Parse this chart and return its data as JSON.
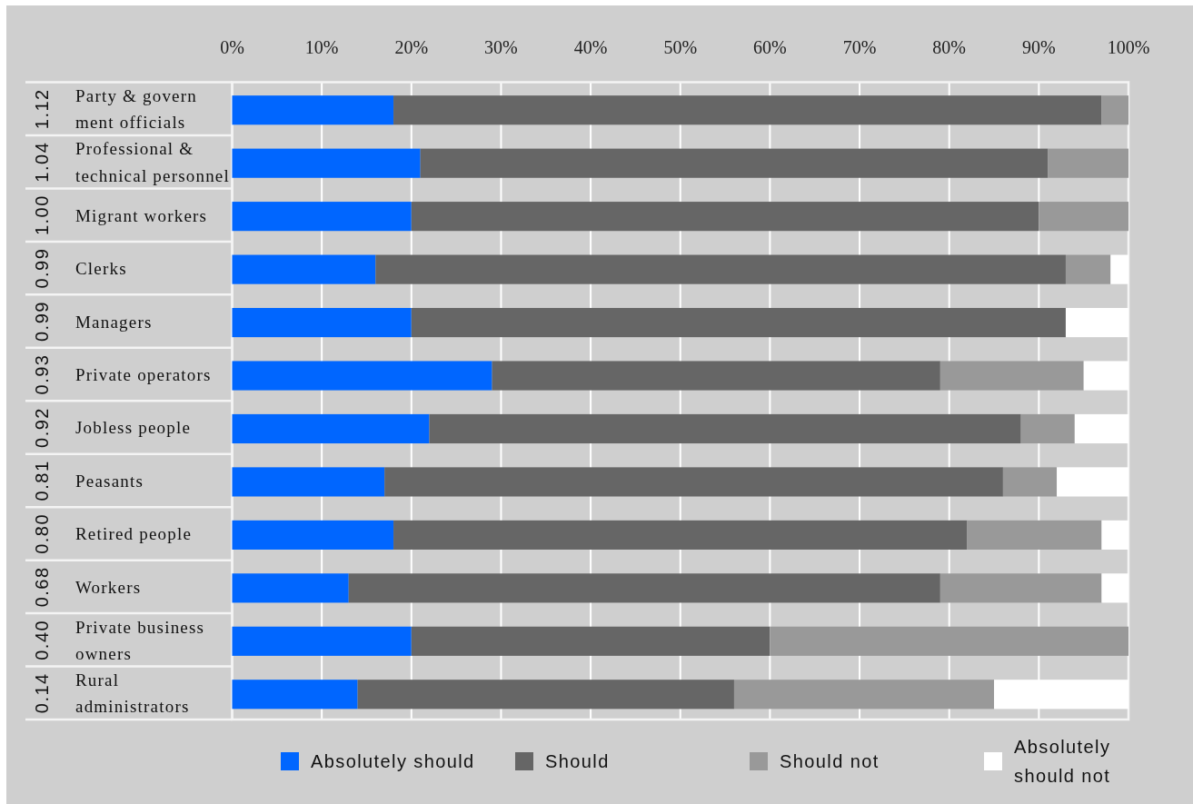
{
  "chart_data": {
    "type": "bar",
    "orientation": "horizontal",
    "stacked": true,
    "categories": [
      "Party & govern\nment officials",
      "Professional &\ntechnical personnel",
      "Migrant workers",
      "Clerks",
      "Managers",
      "Private operators",
      "Jobless people",
      "Peasants",
      "Retired people",
      "Workers",
      "Private business\nowners",
      "Rural\nadministrators"
    ],
    "y2_categories": [
      "1.12",
      "1.04",
      "1.00",
      "0.99",
      "0.99",
      "0.93",
      "0.92",
      "0.81",
      "0.80",
      "0.68",
      "0.40",
      "0.14"
    ],
    "series": [
      {
        "name": "Absolutely should",
        "color": "#0066ff",
        "values": [
          18,
          21,
          20,
          16,
          20,
          29,
          22,
          17,
          18,
          13,
          20,
          14
        ]
      },
      {
        "name": "Should",
        "color": "#666666",
        "values": [
          79,
          70,
          70,
          77,
          73,
          50,
          66,
          69,
          64,
          66,
          40,
          42
        ]
      },
      {
        "name": "Should not",
        "color": "#999999",
        "values": [
          3,
          9,
          10,
          5,
          0,
          16,
          6,
          6,
          15,
          18,
          40,
          29
        ]
      },
      {
        "name": "Absolutely\nshould not",
        "color": "#ffffff",
        "values": [
          0,
          0,
          0,
          2,
          7,
          5,
          6,
          8,
          3,
          3,
          0,
          15
        ]
      }
    ],
    "xlim": [
      0,
      100
    ],
    "xticks": [
      {
        "value": 0,
        "label": "0%"
      },
      {
        "value": 10,
        "label": "10%"
      },
      {
        "value": 20,
        "label": "20%"
      },
      {
        "value": 30,
        "label": "30%"
      },
      {
        "value": 40,
        "label": "40%"
      },
      {
        "value": 50,
        "label": "50%"
      },
      {
        "value": 60,
        "label": "60%"
      },
      {
        "value": 70,
        "label": "70%"
      },
      {
        "value": 80,
        "label": "80%"
      },
      {
        "value": 90,
        "label": "90%"
      },
      {
        "value": 100,
        "label": "100%"
      }
    ],
    "grid": "x",
    "legend": "bottom"
  }
}
